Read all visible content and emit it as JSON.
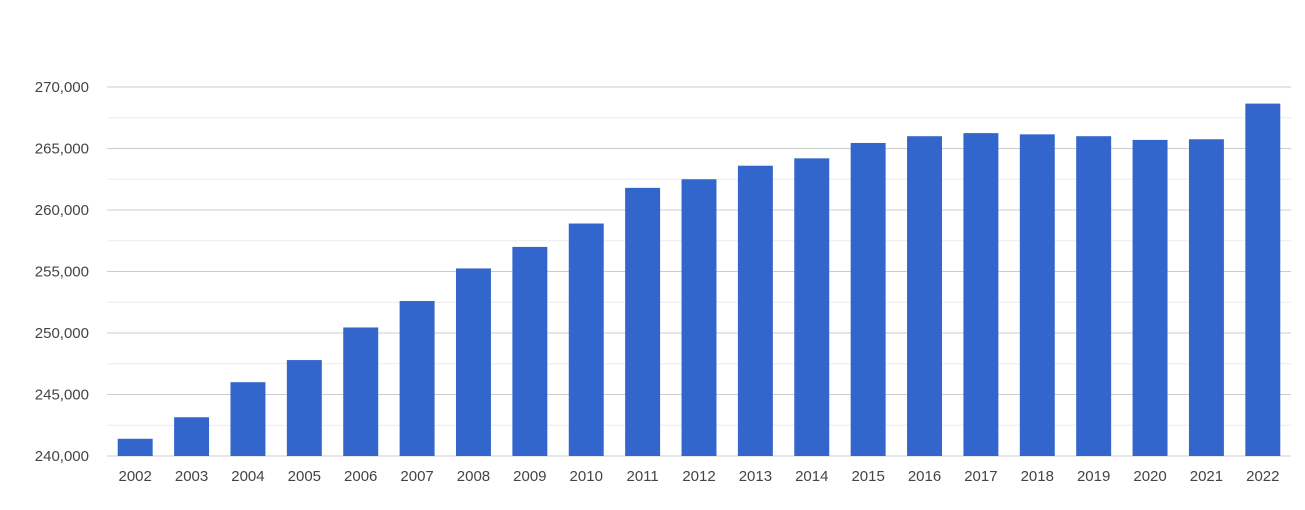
{
  "chart_data": {
    "type": "bar",
    "title": "",
    "xlabel": "",
    "ylabel": "",
    "categories": [
      "2002",
      "2003",
      "2004",
      "2005",
      "2006",
      "2007",
      "2008",
      "2009",
      "2010",
      "2011",
      "2012",
      "2013",
      "2014",
      "2015",
      "2016",
      "2017",
      "2018",
      "2019",
      "2020",
      "2021",
      "2022"
    ],
    "values": [
      241400,
      243150,
      246000,
      247800,
      250450,
      252600,
      255250,
      257000,
      258900,
      261800,
      262500,
      263600,
      264200,
      265450,
      266000,
      266250,
      266150,
      266000,
      265700,
      265750,
      268650
    ],
    "ylim": [
      240000,
      270000
    ],
    "yticks": [
      240000,
      245000,
      250000,
      255000,
      260000,
      265000,
      270000
    ],
    "ytick_labels": [
      "240,000",
      "245,000",
      "250,000",
      "255,000",
      "260,000",
      "265,000",
      "270,000"
    ],
    "grid": true,
    "minor_grid": true,
    "bar_color": "#3366cc",
    "grid_color": "#cccccc",
    "minor_grid_color": "#ebebeb"
  }
}
